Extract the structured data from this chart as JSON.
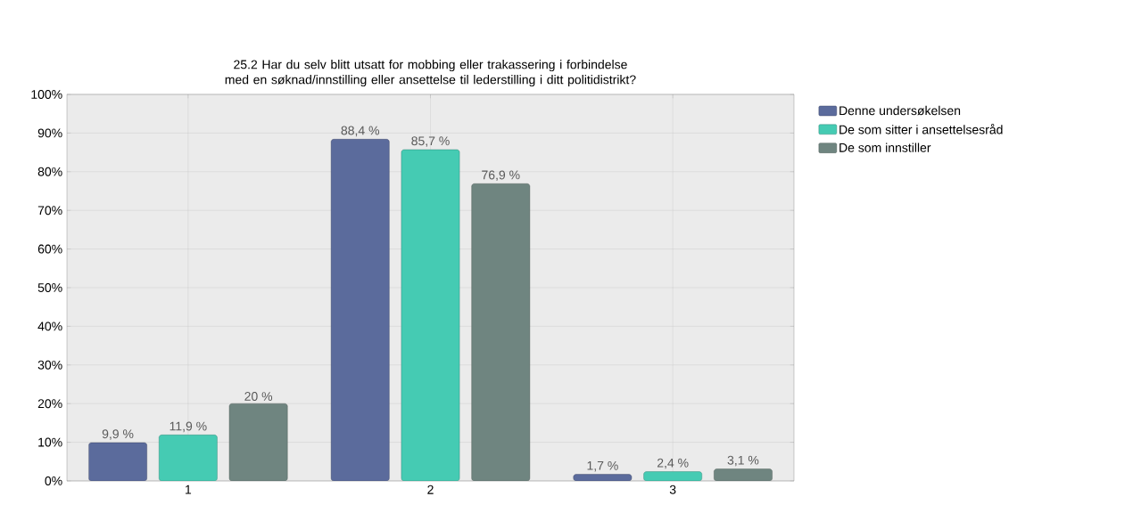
{
  "chart_data": {
    "type": "bar",
    "title": "25.2 Har du selv blitt utsatt for  mobbing eller trakassering i forbindelse med en søknad/innstilling eller ansettelse til lederstilling i ditt politidistrikt?",
    "categories": [
      "1",
      "2",
      "3"
    ],
    "series": [
      {
        "name": "Denne undersøkelsen",
        "color": "#5b6b9c",
        "values": [
          9.9,
          88.4,
          1.7
        ],
        "value_labels": [
          "9,9 %",
          "88,4 %",
          "1,7 %"
        ]
      },
      {
        "name": "De som sitter i ansettelsesråd",
        "color": "#45cbb3",
        "values": [
          11.9,
          85.7,
          2.4
        ],
        "value_labels": [
          "11,9 %",
          "85,7 %",
          "2,4 %"
        ]
      },
      {
        "name": "De som innstiller",
        "color": "#6f8580",
        "values": [
          20,
          76.9,
          3.1
        ],
        "value_labels": [
          "20 %",
          "76,9 %",
          "3,1 %"
        ]
      }
    ],
    "ylim": [
      0,
      100
    ],
    "yticks": [
      {
        "value": 0,
        "label": "0%"
      },
      {
        "value": 10,
        "label": "10%"
      },
      {
        "value": 20,
        "label": "20%"
      },
      {
        "value": 30,
        "label": "30%"
      },
      {
        "value": 40,
        "label": "40%"
      },
      {
        "value": 50,
        "label": "50%"
      },
      {
        "value": 60,
        "label": "60%"
      },
      {
        "value": 70,
        "label": "70%"
      },
      {
        "value": 80,
        "label": "80%"
      },
      {
        "value": 90,
        "label": "90%"
      },
      {
        "value": 100,
        "label": "100%"
      }
    ],
    "grid": true,
    "legend": "top right"
  }
}
